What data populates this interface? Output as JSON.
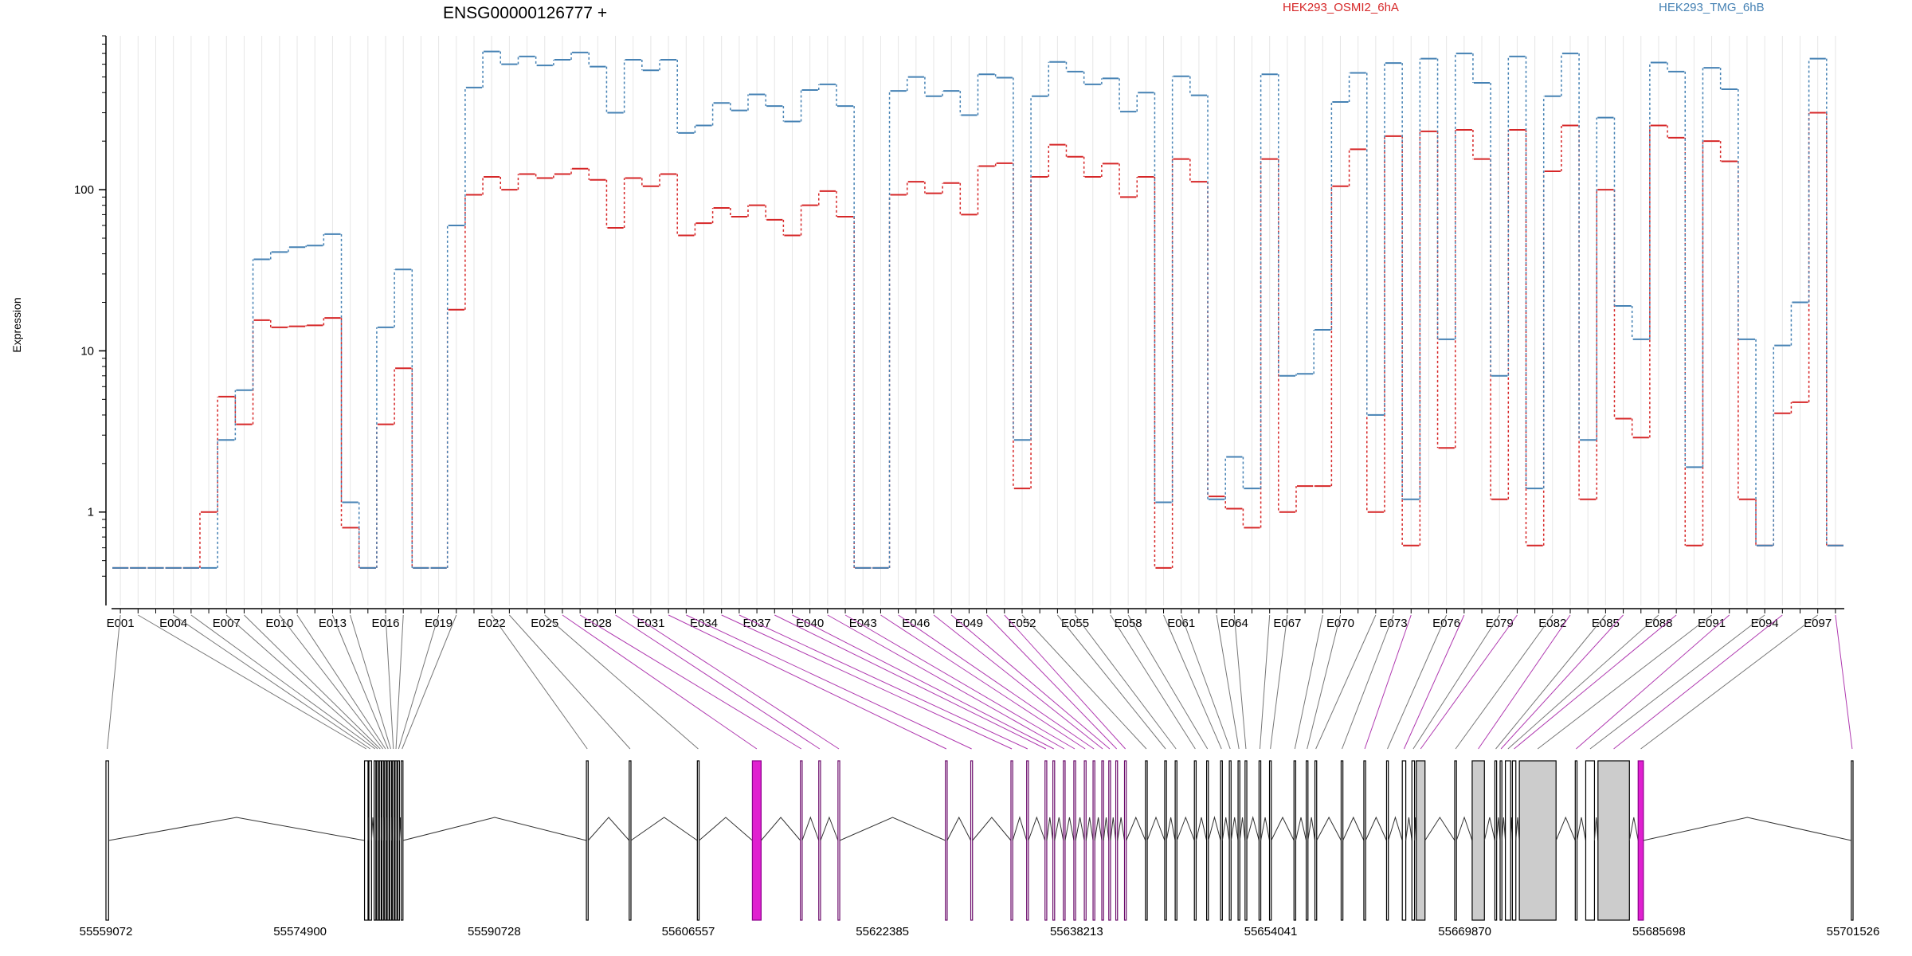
{
  "chart_data": {
    "type": "line",
    "title": "ENSG00000126777 +",
    "ylabel": "Expression",
    "yscale": "log",
    "ylim": [
      0.35,
      900
    ],
    "yticks": [
      {
        "value": 1,
        "label": "1"
      },
      {
        "value": 10,
        "label": "10"
      },
      {
        "value": 100,
        "label": "100"
      }
    ],
    "x_tick_labels": [
      "E001",
      "E004",
      "E007",
      "E010",
      "E013",
      "E016",
      "E019",
      "E022",
      "E025",
      "E028",
      "E031",
      "E034",
      "E037",
      "E040",
      "E043",
      "E046",
      "E049",
      "E052",
      "E055",
      "E058",
      "E061",
      "E064",
      "E067",
      "E070",
      "E073",
      "E076",
      "E079",
      "E082",
      "E085",
      "E088",
      "E091",
      "E094",
      "E097"
    ],
    "series": [
      {
        "name": "HEK293_OSMI2_6hA",
        "color": "#d62728",
        "values": [
          0.45,
          0.45,
          0.45,
          0.45,
          0.45,
          1,
          5.2,
          3.5,
          15.5,
          14,
          14.2,
          14.4,
          16,
          0.8,
          0.45,
          3.5,
          7.8,
          0.45,
          0.45,
          18,
          93,
          120,
          100,
          125,
          118,
          125,
          135,
          115,
          58,
          118,
          105,
          125,
          52,
          62,
          77,
          68,
          80,
          65,
          52,
          80,
          98,
          68,
          0.45,
          0.45,
          93,
          112,
          95,
          110,
          70,
          140,
          146,
          1.4,
          120,
          190,
          160,
          120,
          145,
          90,
          120,
          0.45,
          155,
          112,
          1.25,
          1.05,
          0.8,
          155,
          1,
          1.45,
          1.45,
          105,
          178,
          1,
          215,
          0.62,
          230,
          2.5,
          235,
          155,
          1.2,
          235,
          0.62,
          130,
          250,
          1.2,
          100,
          3.8,
          2.9,
          250,
          210,
          0.62,
          200,
          150,
          1.2,
          0.62,
          4.1,
          4.8,
          300,
          0.62
        ]
      },
      {
        "name": "HEK293_TMG_6hB",
        "color": "#4682b4",
        "values": [
          0.45,
          0.45,
          0.45,
          0.45,
          0.45,
          0.45,
          2.8,
          5.7,
          37,
          41,
          44,
          45,
          53,
          1.15,
          0.45,
          14,
          32,
          0.45,
          0.45,
          60,
          430,
          720,
          600,
          670,
          590,
          640,
          710,
          580,
          300,
          640,
          550,
          640,
          225,
          250,
          345,
          310,
          390,
          330,
          265,
          415,
          450,
          330,
          0.45,
          0.45,
          410,
          500,
          380,
          410,
          290,
          520,
          495,
          2.8,
          380,
          620,
          540,
          450,
          490,
          305,
          400,
          1.15,
          505,
          385,
          1.2,
          2.2,
          1.4,
          520,
          7,
          7.2,
          13.5,
          350,
          530,
          4,
          610,
          1.2,
          650,
          11.8,
          700,
          460,
          7,
          670,
          1.4,
          380,
          700,
          2.8,
          280,
          19,
          11.8,
          615,
          540,
          1.9,
          570,
          420,
          11.8,
          0.62,
          10.8,
          20,
          650,
          0.62
        ]
      }
    ],
    "genomic_axis_labels": [
      "55559072",
      "55574900",
      "55590728",
      "55606557",
      "55622385",
      "55638213",
      "55654041",
      "55669870",
      "55685698",
      "55701526"
    ]
  }
}
